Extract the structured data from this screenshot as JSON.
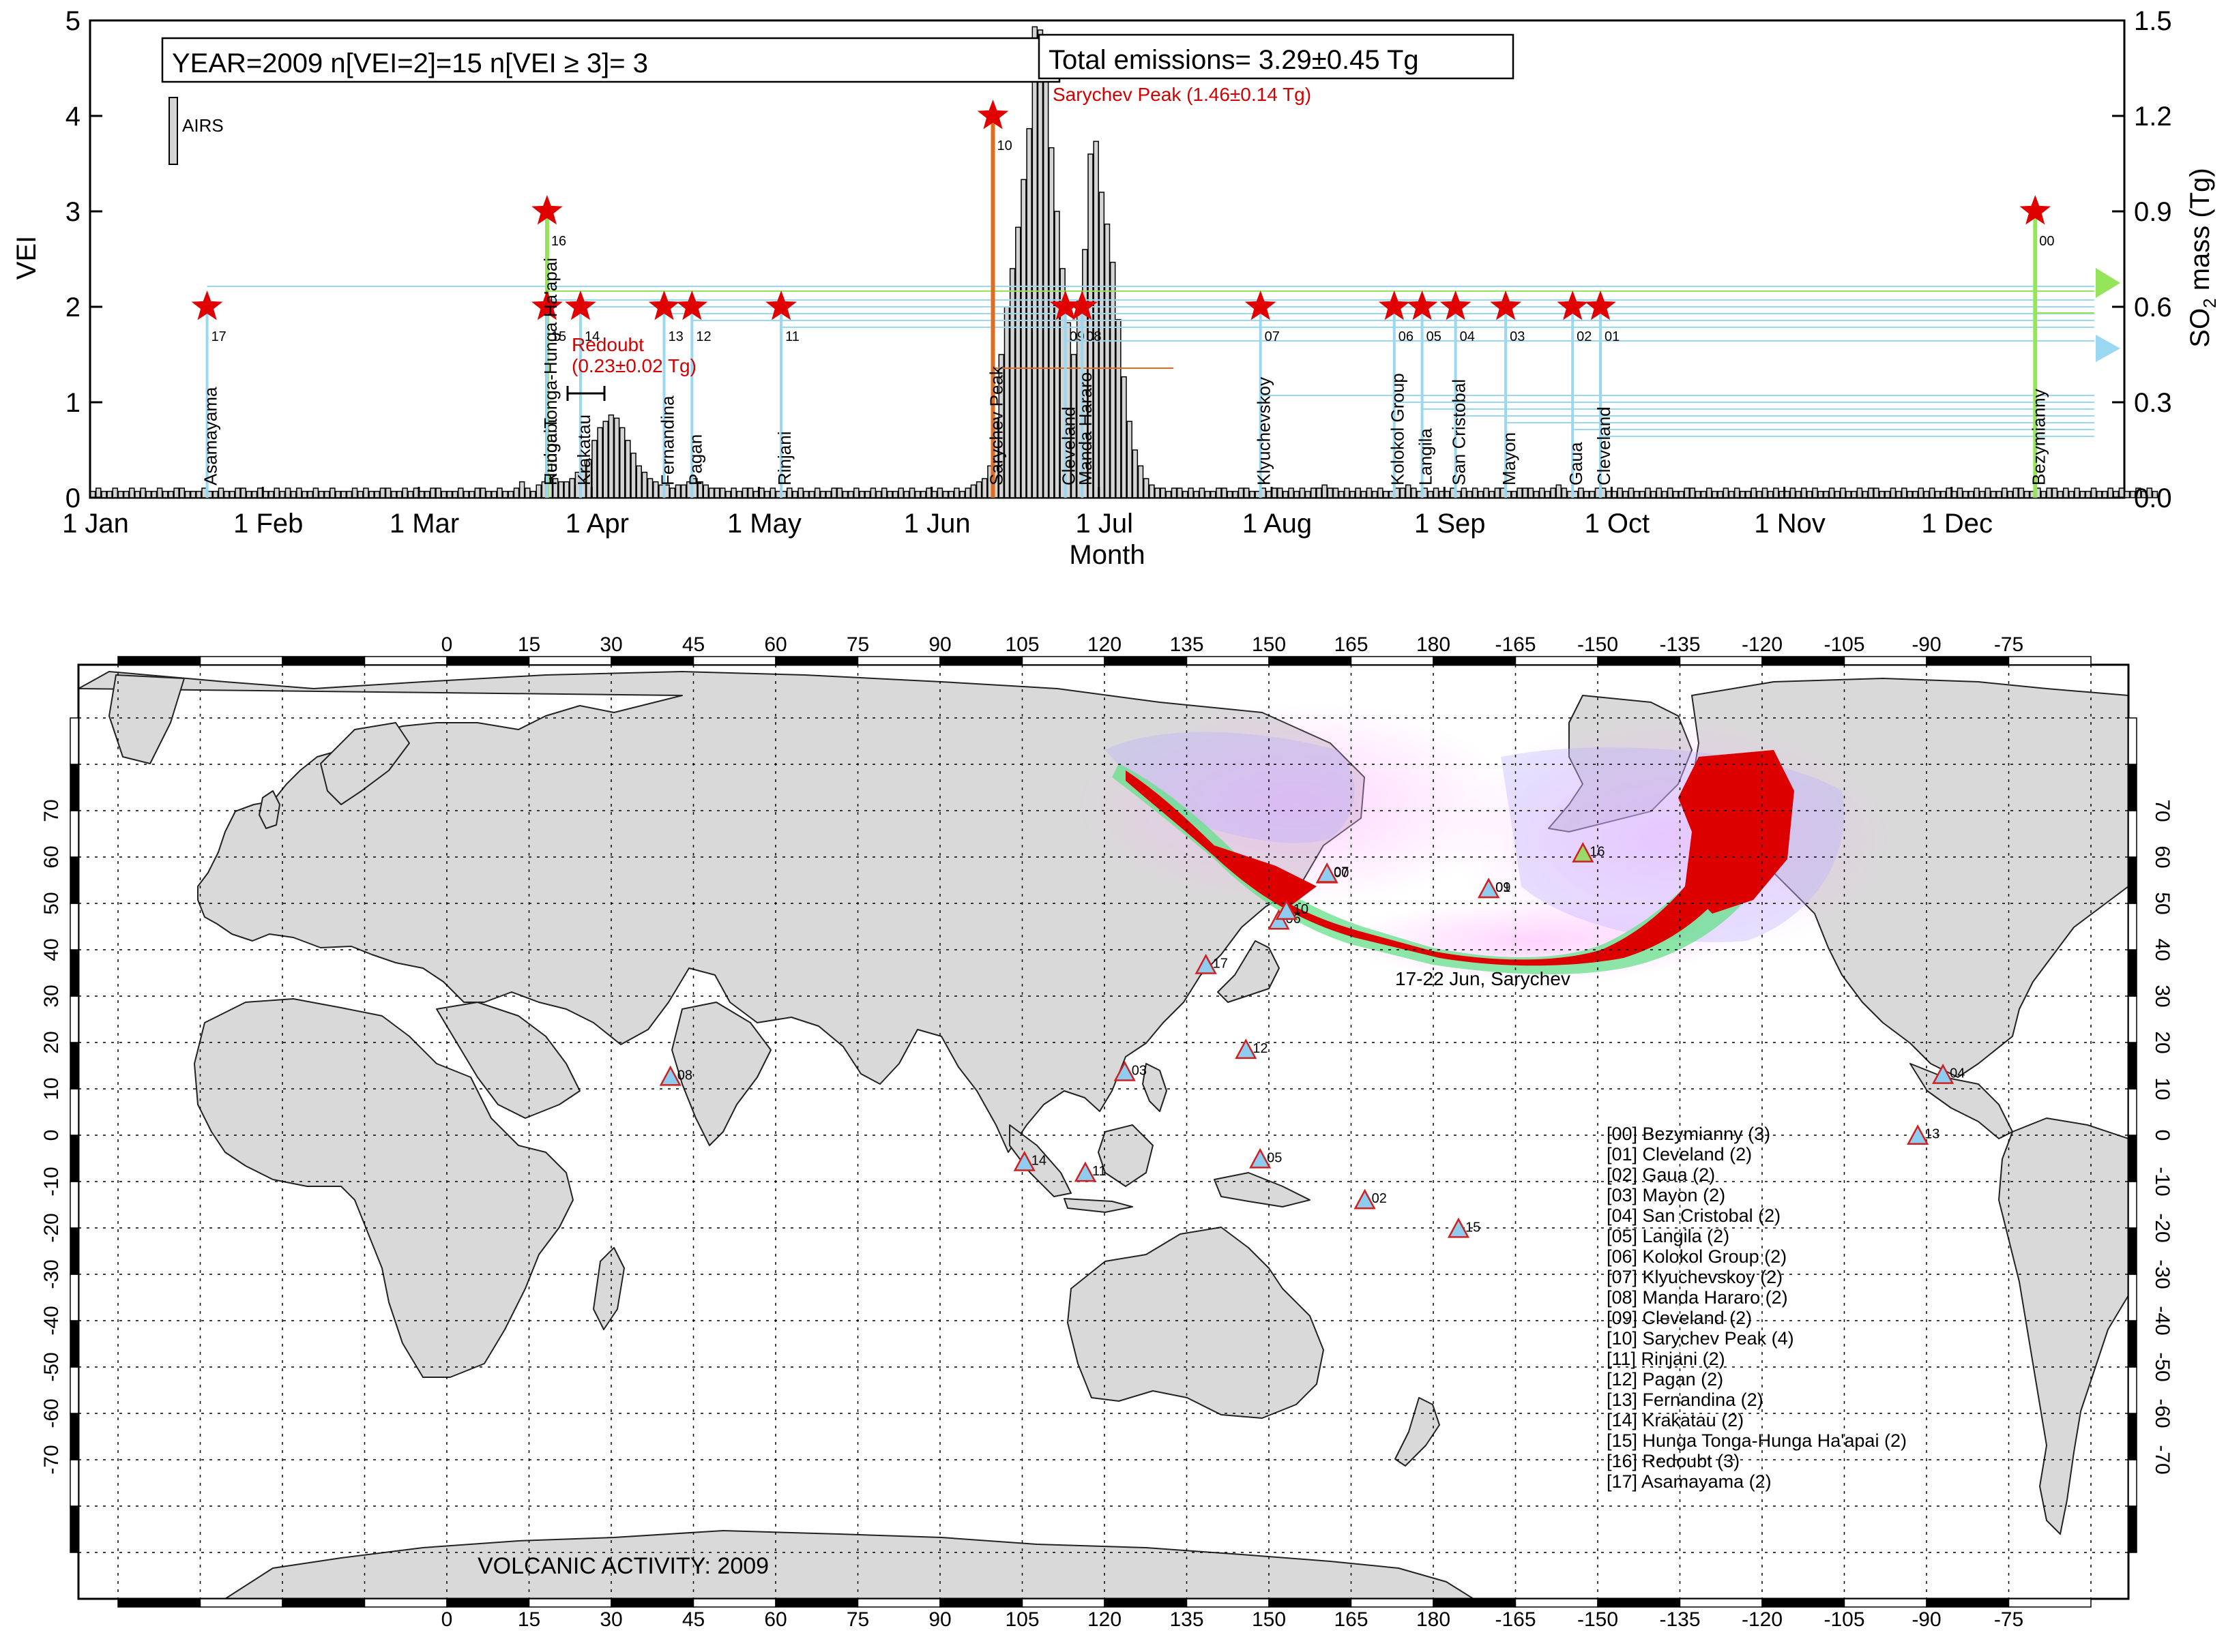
{
  "chart_data": [
    {
      "type": "bar",
      "title": "",
      "xlabel": "Month",
      "ylabel": "VEI",
      "y2label": "SO2 mass (Tg)",
      "ylim": [
        0,
        5
      ],
      "y2lim": [
        0,
        1.5
      ],
      "xlim_days": [
        0,
        365
      ],
      "x_ticks": [
        {
          "label": "1 Jan",
          "day": 0
        },
        {
          "label": "1 Feb",
          "day": 31
        },
        {
          "label": "1 Mar",
          "day": 59
        },
        {
          "label": "1 Apr",
          "day": 90
        },
        {
          "label": "1 May",
          "day": 120
        },
        {
          "label": "1 Jun",
          "day": 151
        },
        {
          "label": "1 Jul",
          "day": 181
        },
        {
          "label": "1 Aug",
          "day": 212
        },
        {
          "label": "1 Sep",
          "day": 243
        },
        {
          "label": "1 Oct",
          "day": 273
        },
        {
          "label": "1 Nov",
          "day": 304
        },
        {
          "label": "1 Dec",
          "day": 334
        }
      ],
      "y_ticks": [
        "0",
        "1",
        "2",
        "3",
        "4",
        "5"
      ],
      "y2_ticks": [
        "0.0",
        "0.3",
        "0.6",
        "0.9",
        "1.2",
        "1.5"
      ],
      "info_box": "YEAR=2009   n[VEI=2]=15  n[VEI ≥ 3]= 3",
      "emissions_box": "Total emissions= 3.29±0.45 Tg",
      "legend": "AIRS",
      "annotations": [
        {
          "text": "Sarychev Peak (1.46±0.14 Tg)",
          "color": "#d40000"
        },
        {
          "text": "Redoubt",
          "color": "#d40000"
        },
        {
          "text": "(0.23±0.02 Tg)",
          "color": "#d40000"
        }
      ],
      "eruptions": [
        {
          "id": "17",
          "name": "Asamayama",
          "day": 21,
          "vei": 2
        },
        {
          "id": "16",
          "name": "Redoubt",
          "day": 82,
          "vei": 3
        },
        {
          "id": "15",
          "name": "Hunga Tonga-Hunga Ha'apai",
          "day": 82,
          "vei": 2
        },
        {
          "id": "14",
          "name": "Krakatau",
          "day": 88,
          "vei": 2
        },
        {
          "id": "13",
          "name": "Fernandina",
          "day": 103,
          "vei": 2
        },
        {
          "id": "12",
          "name": "Pagan",
          "day": 108,
          "vei": 2
        },
        {
          "id": "11",
          "name": "Rinjani",
          "day": 124,
          "vei": 2
        },
        {
          "id": "10",
          "name": "Sarychev Peak",
          "day": 162,
          "vei": 4
        },
        {
          "id": "09",
          "name": "Cleveland",
          "day": 175,
          "vei": 2
        },
        {
          "id": "08",
          "name": "Manda Hararo",
          "day": 178,
          "vei": 2
        },
        {
          "id": "07",
          "name": "Klyuchevskoy",
          "day": 210,
          "vei": 2
        },
        {
          "id": "06",
          "name": "Kolokol Group",
          "day": 234,
          "vei": 2
        },
        {
          "id": "05",
          "name": "Langila",
          "day": 239,
          "vei": 2
        },
        {
          "id": "04",
          "name": "San Cristobal",
          "day": 245,
          "vei": 2
        },
        {
          "id": "03",
          "name": "Mayon",
          "day": 254,
          "vei": 2
        },
        {
          "id": "02",
          "name": "Gaua",
          "day": 266,
          "vei": 2
        },
        {
          "id": "01",
          "name": "Cleveland",
          "day": 271,
          "vei": 2
        },
        {
          "id": "00",
          "name": "Bezymianny",
          "day": 349,
          "vei": 3
        }
      ],
      "so2_series": {
        "name": "AIRS",
        "day_start": 0,
        "values": [
          0.02,
          0.03,
          0.02,
          0.02,
          0.03,
          0.02,
          0.02,
          0.03,
          0.02,
          0.03,
          0.02,
          0.02,
          0.03,
          0.02,
          0.02,
          0.03,
          0.03,
          0.02,
          0.02,
          0.02,
          0.03,
          0.02,
          0.02,
          0.03,
          0.02,
          0.02,
          0.03,
          0.03,
          0.02,
          0.02,
          0.03,
          0.02,
          0.02,
          0.03,
          0.02,
          0.03,
          0.02,
          0.03,
          0.02,
          0.02,
          0.03,
          0.02,
          0.02,
          0.03,
          0.02,
          0.02,
          0.02,
          0.03,
          0.02,
          0.03,
          0.02,
          0.02,
          0.03,
          0.03,
          0.02,
          0.02,
          0.03,
          0.02,
          0.03,
          0.02,
          0.02,
          0.03,
          0.03,
          0.02,
          0.02,
          0.02,
          0.03,
          0.02,
          0.02,
          0.03,
          0.03,
          0.02,
          0.02,
          0.03,
          0.02,
          0.02,
          0.03,
          0.05,
          0.03,
          0.02,
          0.04,
          0.05,
          0.06,
          0.06,
          0.05,
          0.05,
          0.06,
          0.08,
          0.1,
          0.12,
          0.18,
          0.22,
          0.24,
          0.26,
          0.25,
          0.22,
          0.18,
          0.14,
          0.1,
          0.08,
          0.06,
          0.05,
          0.04,
          0.04,
          0.03,
          0.04,
          0.04,
          0.05,
          0.06,
          0.05,
          0.04,
          0.03,
          0.03,
          0.03,
          0.02,
          0.03,
          0.02,
          0.03,
          0.03,
          0.02,
          0.03,
          0.02,
          0.03,
          0.02,
          0.02,
          0.03,
          0.02,
          0.03,
          0.02,
          0.02,
          0.03,
          0.02,
          0.02,
          0.03,
          0.03,
          0.02,
          0.02,
          0.03,
          0.02,
          0.02,
          0.03,
          0.02,
          0.03,
          0.02,
          0.02,
          0.03,
          0.02,
          0.03,
          0.02,
          0.02,
          0.03,
          0.02,
          0.03,
          0.02,
          0.02,
          0.03,
          0.02,
          0.03,
          0.04,
          0.05,
          0.06,
          0.1,
          0.25,
          0.45,
          0.6,
          0.72,
          0.85,
          1.0,
          1.16,
          1.48,
          1.47,
          1.32,
          1.1,
          0.9,
          0.72,
          0.55,
          0.45,
          0.62,
          0.78,
          1.08,
          1.12,
          0.96,
          0.86,
          0.74,
          0.56,
          0.38,
          0.24,
          0.15,
          0.1,
          0.06,
          0.04,
          0.03,
          0.03,
          0.02,
          0.03,
          0.03,
          0.02,
          0.03,
          0.02,
          0.03,
          0.02,
          0.02,
          0.03,
          0.03,
          0.02,
          0.02,
          0.03,
          0.03,
          0.02,
          0.02,
          0.03,
          0.02,
          0.03,
          0.03,
          0.02,
          0.03,
          0.02,
          0.03,
          0.02,
          0.03,
          0.03,
          0.04,
          0.03,
          0.03,
          0.02,
          0.03,
          0.02,
          0.03,
          0.02,
          0.03,
          0.02,
          0.03,
          0.02,
          0.02,
          0.03,
          0.03,
          0.04,
          0.03,
          0.02,
          0.03,
          0.02,
          0.03,
          0.02,
          0.02,
          0.03,
          0.02,
          0.03,
          0.02,
          0.03,
          0.02,
          0.03,
          0.02,
          0.03,
          0.03,
          0.02,
          0.02,
          0.03,
          0.03,
          0.03,
          0.02,
          0.03,
          0.02,
          0.03,
          0.04,
          0.03,
          0.02,
          0.02,
          0.03,
          0.02,
          0.02,
          0.03,
          0.03,
          0.02,
          0.02,
          0.03,
          0.02,
          0.03,
          0.02,
          0.02,
          0.03,
          0.02,
          0.03,
          0.02,
          0.03,
          0.02,
          0.02,
          0.03,
          0.03,
          0.02,
          0.02,
          0.03,
          0.02,
          0.02,
          0.03,
          0.02,
          0.03,
          0.02,
          0.02,
          0.03,
          0.02,
          0.03,
          0.02,
          0.03,
          0.02,
          0.02,
          0.03,
          0.02,
          0.03,
          0.02,
          0.03,
          0.02,
          0.02,
          0.03,
          0.02,
          0.03,
          0.02,
          0.02,
          0.03,
          0.02,
          0.03,
          0.03,
          0.02,
          0.02,
          0.03,
          0.02,
          0.03,
          0.02,
          0.02,
          0.03,
          0.02,
          0.03,
          0.02,
          0.02,
          0.03,
          0.02,
          0.03,
          0.02,
          0.02,
          0.03,
          0.02,
          0.03,
          0.02,
          0.02,
          0.03,
          0.02,
          0.03,
          0.03,
          0.02,
          0.02,
          0.03,
          0.02,
          0.03,
          0.03,
          0.02,
          0.03,
          0.02,
          0.03,
          0.02,
          0.02,
          0.03,
          0.02,
          0.02,
          0.03,
          0.02,
          0.03,
          0.02,
          0.02,
          0.03,
          0.02,
          0.03,
          0.02
        ]
      }
    },
    {
      "type": "map",
      "title": "VOLCANIC ACTIVITY: 2009",
      "plume_label": "17-22 Jun, Sarychev",
      "lon_ticks": [
        "0",
        "15",
        "30",
        "45",
        "60",
        "75",
        "90",
        "105",
        "120",
        "135",
        "150",
        "165",
        "180",
        "-165",
        "-150",
        "-135",
        "-120",
        "-105",
        "-90",
        "-75"
      ],
      "lat_ticks": [
        "70",
        "60",
        "50",
        "40",
        "30",
        "20",
        "10",
        "0",
        "-10",
        "-20",
        "-30",
        "-40",
        "-50",
        "-60",
        "-70"
      ],
      "volcano_markers": [
        {
          "id": "00",
          "lon": 160.6,
          "lat": 55.97
        },
        {
          "id": "01",
          "lon": -169.9,
          "lat": 52.8
        },
        {
          "id": "02",
          "lon": 167.5,
          "lat": -14.3
        },
        {
          "id": "03",
          "lon": 123.7,
          "lat": 13.3
        },
        {
          "id": "04",
          "lon": -87.0,
          "lat": 12.7
        },
        {
          "id": "05",
          "lon": 148.4,
          "lat": -5.5
        },
        {
          "id": "06",
          "lon": 151.8,
          "lat": 46.0
        },
        {
          "id": "07",
          "lon": 160.6,
          "lat": 56.1
        },
        {
          "id": "08",
          "lon": 40.8,
          "lat": 12.3
        },
        {
          "id": "09",
          "lon": -169.9,
          "lat": 52.8
        },
        {
          "id": "10",
          "lon": 153.2,
          "lat": 48.1
        },
        {
          "id": "11",
          "lon": 116.5,
          "lat": -8.4
        },
        {
          "id": "12",
          "lon": 145.8,
          "lat": 18.1
        },
        {
          "id": "13",
          "lon": -91.6,
          "lat": -0.4
        },
        {
          "id": "14",
          "lon": 105.4,
          "lat": -6.1
        },
        {
          "id": "15",
          "lon": -175.4,
          "lat": -20.5
        },
        {
          "id": "16",
          "lon": -152.7,
          "lat": 60.5
        },
        {
          "id": "17",
          "lon": 138.5,
          "lat": 36.4
        }
      ],
      "legend_entries": [
        "[00] Bezymianny  (3)",
        "[01] Cleveland  (2)",
        "[02] Gaua  (2)",
        "[03] Mayon  (2)",
        "[04] San Cristobal  (2)",
        "[05] Langila  (2)",
        "[06] Kolokol Group  (2)",
        "[07] Klyuchevskoy  (2)",
        "[08] Manda Hararo  (2)",
        "[09] Cleveland  (2)",
        "[10] Sarychev Peak  (4)",
        "[11] Rinjani  (2)",
        "[12] Pagan  (2)",
        "[13] Fernandina  (2)",
        "[14] Krakatau  (2)",
        "[15] Hunga Tonga-Hunga Ha'apai  (2)",
        "[16] Redoubt  (3)",
        "[17] Asamayama  (2)"
      ]
    }
  ],
  "colors": {
    "star": "#e00000",
    "vei2_line": "#99d8f0",
    "vei3_line": "#96e45a",
    "vei4_line": "#e06c1e",
    "bar_fill": "#d4d4d4",
    "land": "#d9d9d9",
    "plume_high": "#dd0000",
    "annotation_red": "#d40000"
  }
}
